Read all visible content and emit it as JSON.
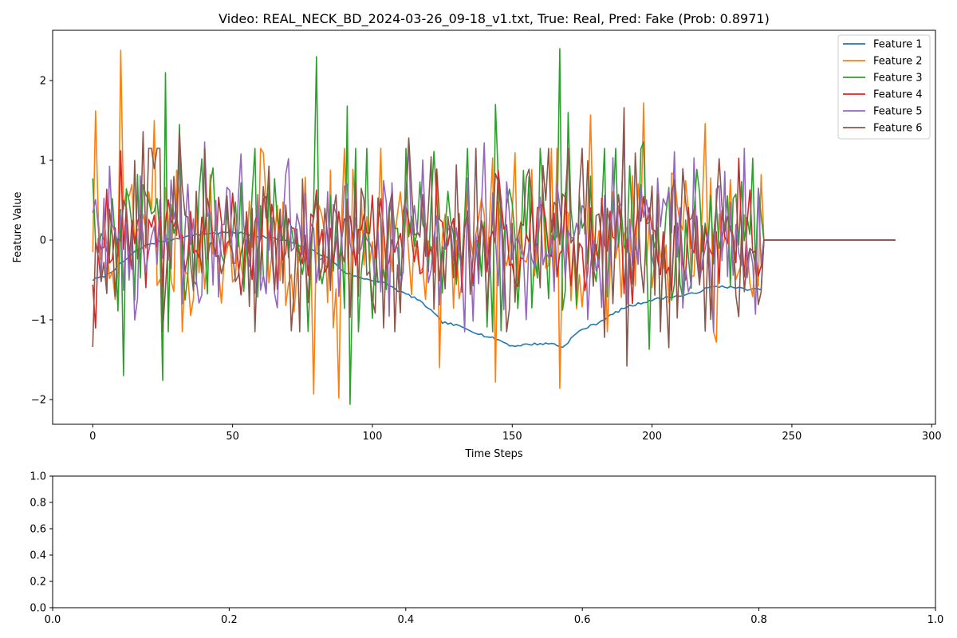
{
  "chart_data": [
    {
      "type": "line",
      "title": "Video: REAL_NECK_BD_2024-03-26_09-18_v1.txt, True: Real, Pred: Fake (Prob: 0.8971)",
      "xlabel": "Time Steps",
      "ylabel": "Feature Value",
      "xlim": [
        -14.35,
        301.35
      ],
      "ylim": [
        -2.31,
        2.63
      ],
      "xticks": [
        0,
        50,
        100,
        150,
        200,
        250,
        300
      ],
      "yticks": [
        -2,
        -1,
        0,
        1,
        2
      ],
      "xtick_labels": [
        "0",
        "50",
        "100",
        "150",
        "200",
        "250",
        "300"
      ],
      "ytick_labels": [
        "−2",
        "−1",
        "0",
        "1",
        "2"
      ],
      "grid": false,
      "legend": "upper right",
      "n_points": 288,
      "active_length": 240,
      "series": [
        {
          "name": "Feature 1",
          "color": "#1f77b4",
          "anchors": [
            [
              0,
              -0.5
            ],
            [
              5,
              -0.44
            ],
            [
              10,
              -0.3
            ],
            [
              15,
              -0.15
            ],
            [
              20,
              -0.05
            ],
            [
              30,
              0.02
            ],
            [
              40,
              0.08
            ],
            [
              50,
              0.1
            ],
            [
              60,
              0.05
            ],
            [
              70,
              -0.02
            ],
            [
              80,
              -0.15
            ],
            [
              85,
              -0.25
            ],
            [
              90,
              -0.4
            ],
            [
              95,
              -0.47
            ],
            [
              100,
              -0.5
            ],
            [
              105,
              -0.55
            ],
            [
              110,
              -0.65
            ],
            [
              115,
              -0.72
            ],
            [
              120,
              -0.85
            ],
            [
              125,
              -1.03
            ],
            [
              130,
              -1.07
            ],
            [
              135,
              -1.13
            ],
            [
              140,
              -1.2
            ],
            [
              145,
              -1.25
            ],
            [
              150,
              -1.33
            ],
            [
              155,
              -1.31
            ],
            [
              160,
              -1.3
            ],
            [
              165,
              -1.3
            ],
            [
              168,
              -1.35
            ],
            [
              172,
              -1.2
            ],
            [
              175,
              -1.12
            ],
            [
              180,
              -1.05
            ],
            [
              185,
              -0.95
            ],
            [
              190,
              -0.85
            ],
            [
              195,
              -0.8
            ],
            [
              200,
              -0.75
            ],
            [
              205,
              -0.72
            ],
            [
              210,
              -0.7
            ],
            [
              215,
              -0.67
            ],
            [
              220,
              -0.6
            ],
            [
              225,
              -0.58
            ],
            [
              230,
              -0.6
            ],
            [
              235,
              -0.62
            ],
            [
              239,
              -0.62
            ],
            [
              240,
              0
            ]
          ],
          "noise": 0.015
        },
        {
          "name": "Feature 2",
          "color": "#ff7f0e",
          "scale": 0.55,
          "seed": 11,
          "spikes": [
            [
              1,
              1.62
            ],
            [
              10,
              2.38
            ],
            [
              22,
              1.5
            ],
            [
              79,
              -1.93
            ],
            [
              88,
              -1.98
            ],
            [
              124,
              -1.6
            ],
            [
              144,
              -1.78
            ],
            [
              167,
              -1.86
            ],
            [
              178,
              1.57
            ],
            [
              197,
              1.72
            ],
            [
              219,
              1.46
            ],
            [
              223,
              -1.28
            ]
          ]
        },
        {
          "name": "Feature 3",
          "color": "#2ca02c",
          "scale": 0.55,
          "seed": 29,
          "spikes": [
            [
              11,
              -1.7
            ],
            [
              25,
              -1.76
            ],
            [
              26,
              2.1
            ],
            [
              31,
              1.45
            ],
            [
              80,
              2.3
            ],
            [
              91,
              1.68
            ],
            [
              92,
              -2.06
            ],
            [
              144,
              1.7
            ],
            [
              167,
              2.4
            ],
            [
              170,
              1.6
            ],
            [
              197,
              1.23
            ],
            [
              199,
              -1.37
            ]
          ]
        },
        {
          "name": "Feature 4",
          "color": "#d62728",
          "scale": 0.35,
          "seed": 47,
          "spikes": []
        },
        {
          "name": "Feature 5",
          "color": "#9467bd",
          "scale": 0.55,
          "seed": 61,
          "spikes": [
            [
              40,
              1.23
            ],
            [
              53,
              1.08
            ],
            [
              113,
              1.22
            ],
            [
              140,
              1.22
            ],
            [
              190,
              1.36
            ]
          ]
        },
        {
          "name": "Feature 6",
          "color": "#8c564b",
          "scale": 0.6,
          "seed": 83,
          "spikes": [
            [
              0,
              -1.34
            ],
            [
              18,
              1.36
            ],
            [
              31,
              1.34
            ],
            [
              113,
              1.28
            ],
            [
              183,
              -1.22
            ],
            [
              190,
              1.66
            ],
            [
              191,
              -1.58
            ],
            [
              206,
              -1.35
            ],
            [
              224,
              1.02
            ]
          ]
        }
      ]
    },
    {
      "type": "line",
      "title": "",
      "xlim": [
        0,
        1
      ],
      "ylim": [
        0,
        1
      ],
      "xticks": [
        0,
        0.2,
        0.4,
        0.6,
        0.8,
        1.0
      ],
      "yticks": [
        0,
        0.2,
        0.4,
        0.6,
        0.8,
        1.0
      ],
      "xtick_labels": [
        "0.0",
        "0.2",
        "0.4",
        "0.6",
        "0.8",
        "1.0"
      ],
      "ytick_labels": [
        "0.0",
        "0.2",
        "0.4",
        "0.6",
        "0.8",
        "1.0"
      ],
      "series": []
    }
  ]
}
